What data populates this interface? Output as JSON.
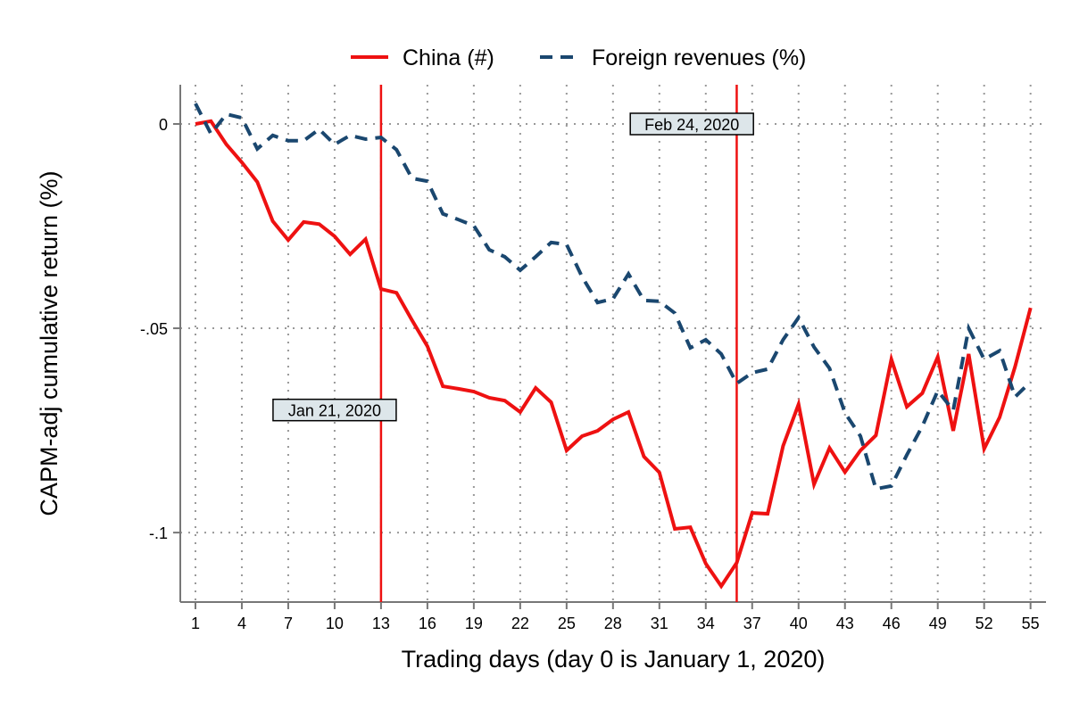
{
  "chart_data": {
    "type": "line",
    "title": "",
    "xlabel": "Trading days (day 0 is January 1, 2020)",
    "ylabel": "CAPM-adj cumulative return (%)",
    "xlim": [
      0.02,
      56
    ],
    "ylim": [
      -0.117,
      0.0096
    ],
    "xticks": [
      1,
      4,
      7,
      10,
      13,
      16,
      19,
      22,
      25,
      28,
      31,
      34,
      37,
      40,
      43,
      46,
      49,
      52,
      55
    ],
    "yticks": [
      {
        "value": 0,
        "label": "0"
      },
      {
        "value": -0.05,
        "label": "-.05"
      },
      {
        "value": -0.1,
        "label": "-.1"
      }
    ],
    "grid": true,
    "legend_position": "top",
    "x": [
      1,
      2,
      3,
      4,
      5,
      6,
      7,
      8,
      9,
      10,
      11,
      12,
      13,
      14,
      15,
      16,
      17,
      18,
      19,
      20,
      21,
      22,
      23,
      24,
      25,
      26,
      27,
      28,
      29,
      30,
      31,
      32,
      33,
      34,
      35,
      36,
      37,
      38,
      39,
      40,
      41,
      42,
      43,
      44,
      45,
      46,
      47,
      48,
      49,
      50,
      51,
      52,
      53,
      54,
      55
    ],
    "series": [
      {
        "name": "China (#)",
        "color": "#ee1111",
        "style": "solid",
        "values": [
          0,
          0.0007,
          -0.005,
          -0.0094,
          -0.0142,
          -0.0238,
          -0.0284,
          -0.024,
          -0.0245,
          -0.0275,
          -0.0319,
          -0.0282,
          -0.0404,
          -0.0413,
          -0.048,
          -0.0544,
          -0.0642,
          -0.0648,
          -0.0655,
          -0.067,
          -0.0677,
          -0.0705,
          -0.0646,
          -0.0681,
          -0.0799,
          -0.0764,
          -0.0751,
          -0.0723,
          -0.0705,
          -0.0814,
          -0.0853,
          -0.0991,
          -0.0987,
          -0.1076,
          -0.1131,
          -0.1074,
          -0.0952,
          -0.0954,
          -0.0788,
          -0.0686,
          -0.0882,
          -0.0793,
          -0.0852,
          -0.0799,
          -0.0762,
          -0.0576,
          -0.0692,
          -0.0659,
          -0.057,
          -0.0751,
          -0.0563,
          -0.0795,
          -0.0718,
          -0.0594,
          -0.045
        ]
      },
      {
        "name": "Foreign revenues (%)",
        "color": "#1a476f",
        "style": "dashed",
        "values": [
          0.005,
          -0.0024,
          0.0024,
          0.0015,
          -0.0061,
          -0.0028,
          -0.0041,
          -0.0041,
          -0.0013,
          -0.005,
          -0.0028,
          -0.0037,
          -0.0033,
          -0.0063,
          -0.0133,
          -0.014,
          -0.022,
          -0.0234,
          -0.0249,
          -0.0308,
          -0.0325,
          -0.0358,
          -0.0325,
          -0.029,
          -0.0295,
          -0.0374,
          -0.0437,
          -0.0428,
          -0.0367,
          -0.0432,
          -0.0434,
          -0.0463,
          -0.0548,
          -0.0528,
          -0.0563,
          -0.0635,
          -0.0609,
          -0.06,
          -0.0528,
          -0.0474,
          -0.0546,
          -0.0598,
          -0.0707,
          -0.0764,
          -0.0893,
          -0.0886,
          -0.081,
          -0.074,
          -0.0653,
          -0.0701,
          -0.05,
          -0.0576,
          -0.0555,
          -0.0668,
          -0.0631
        ]
      }
    ],
    "vlines": [
      {
        "x": 13,
        "color": "#ee1111"
      },
      {
        "x": 36,
        "color": "#ee1111"
      }
    ],
    "annotations": [
      {
        "text": "Jan 21, 2020",
        "x": 10,
        "y": -0.07
      },
      {
        "text": "Feb 24, 2020",
        "x": 33.1,
        "y": 0
      }
    ]
  }
}
